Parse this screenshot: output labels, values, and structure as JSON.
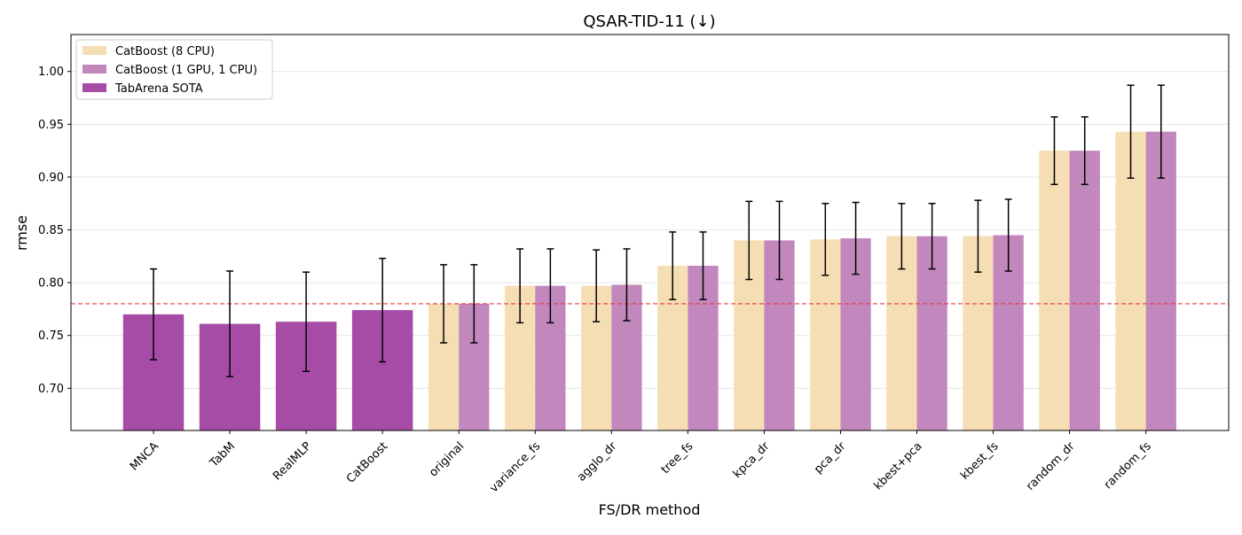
{
  "chart_data": {
    "type": "bar",
    "title": "QSAR-TID-11 (↓)",
    "xlabel": "FS/DR method",
    "ylabel": "rmse",
    "ylim": [
      0.66,
      1.035
    ],
    "yticks": [
      0.7,
      0.75,
      0.8,
      0.85,
      0.9,
      0.95,
      1.0
    ],
    "ytick_labels": [
      "0.70",
      "0.75",
      "0.80",
      "0.85",
      "0.90",
      "0.95",
      "1.00"
    ],
    "grid": "horizontal",
    "legend_position": "top-left",
    "reference_line": {
      "value": 0.78,
      "style": "dashed",
      "color": "#e8393f"
    },
    "categories": [
      "MNCA",
      "TabM",
      "RealMLP",
      "CatBoost",
      "original",
      "variance_fs",
      "agglo_dr",
      "tree_fs",
      "kpca_dr",
      "pca_dr",
      "kbest+pca",
      "kbest_fs",
      "random_dr",
      "random_fs"
    ],
    "series": [
      {
        "name": "CatBoost (8 CPU)",
        "color": "#f5deb3",
        "values": [
          null,
          null,
          null,
          null,
          0.78,
          0.797,
          0.797,
          0.816,
          0.84,
          0.841,
          0.844,
          0.844,
          0.925,
          0.943
        ],
        "errors": [
          null,
          null,
          null,
          null,
          0.037,
          0.035,
          0.034,
          0.032,
          0.037,
          0.034,
          0.031,
          0.034,
          0.032,
          0.044
        ]
      },
      {
        "name": "CatBoost (1 GPU, 1 CPU)",
        "color": "#c288bd",
        "values": [
          null,
          null,
          null,
          null,
          0.78,
          0.797,
          0.798,
          0.816,
          0.84,
          0.842,
          0.844,
          0.845,
          0.925,
          0.943
        ],
        "errors": [
          null,
          null,
          null,
          null,
          0.037,
          0.035,
          0.034,
          0.032,
          0.037,
          0.034,
          0.031,
          0.034,
          0.032,
          0.044
        ]
      },
      {
        "name": "TabArena SOTA",
        "color": "#a64ca6",
        "values": [
          0.77,
          0.761,
          0.763,
          0.774,
          null,
          null,
          null,
          null,
          null,
          null,
          null,
          null,
          null,
          null
        ],
        "errors": [
          0.043,
          0.05,
          0.047,
          0.049,
          null,
          null,
          null,
          null,
          null,
          null,
          null,
          null,
          null,
          null
        ]
      }
    ]
  }
}
